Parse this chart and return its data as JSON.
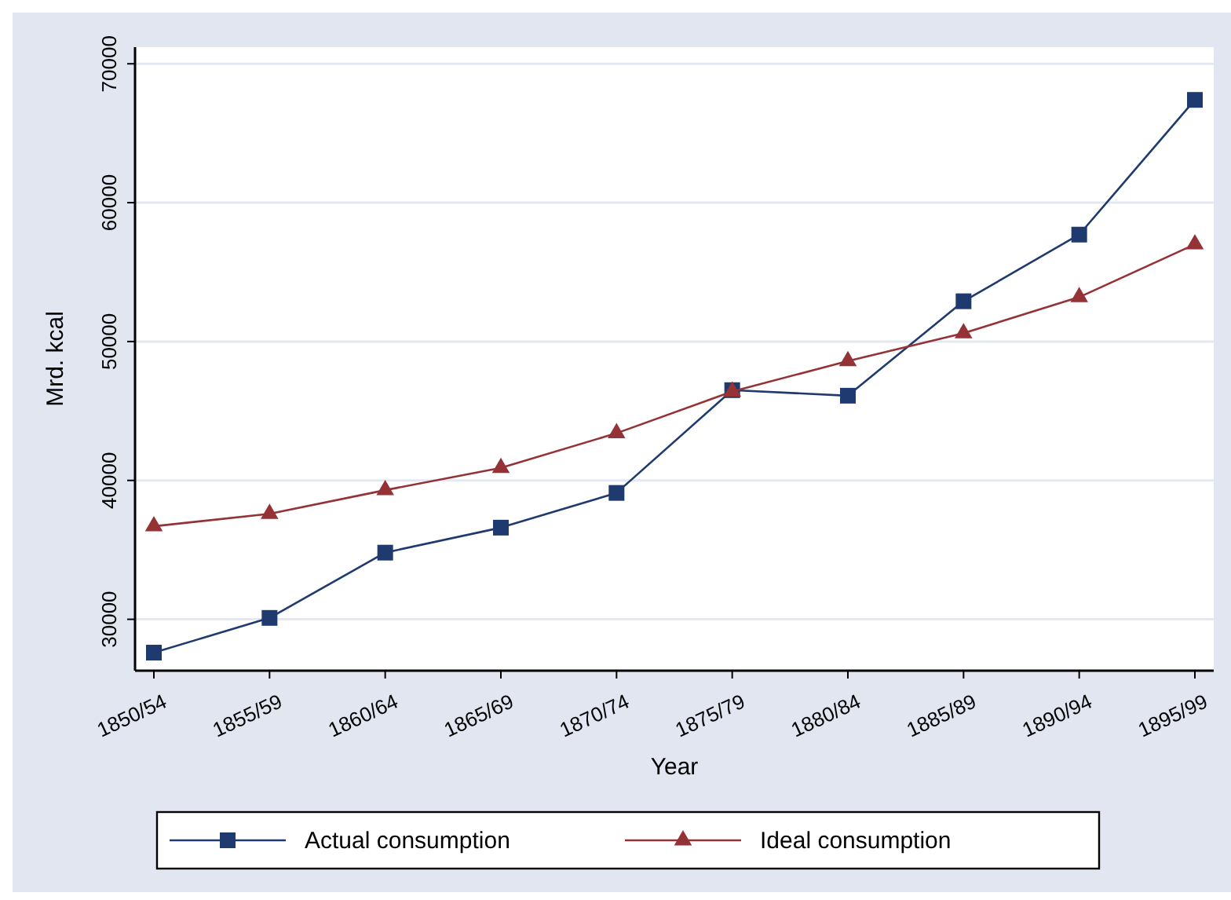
{
  "chart_data": {
    "type": "line",
    "xlabel": "Year",
    "ylabel": "Mrd. kcal",
    "categories": [
      "1850/54",
      "1855/59",
      "1860/64",
      "1865/69",
      "1870/74",
      "1875/79",
      "1880/84",
      "1885/89",
      "1890/94",
      "1895/99"
    ],
    "series": [
      {
        "name": "Actual consumption",
        "color": "#1f3a6e",
        "marker": "square",
        "values": [
          27600,
          30100,
          34800,
          36600,
          39100,
          46500,
          46100,
          52900,
          57700,
          67400
        ]
      },
      {
        "name": "Ideal consumption",
        "color": "#943236",
        "marker": "triangle",
        "values": [
          36700,
          37600,
          39300,
          40900,
          43400,
          46400,
          48600,
          50600,
          53200,
          57000
        ]
      }
    ],
    "ylim": [
      26300,
      71200
    ],
    "yticks": [
      30000,
      40000,
      50000,
      60000,
      70000
    ],
    "grid": "y",
    "legend": "bottom",
    "line_style": "solid"
  }
}
